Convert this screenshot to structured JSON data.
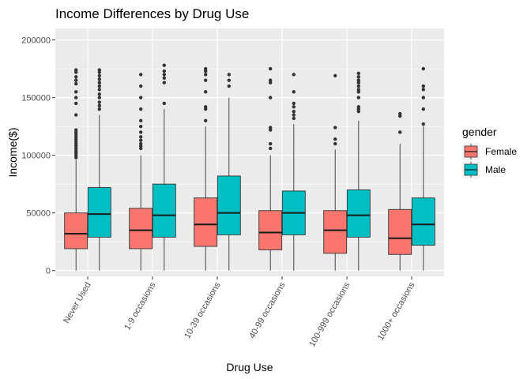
{
  "chart_data": {
    "type": "box",
    "title": "Income Differences by Drug Use",
    "xlabel": "Drug Use",
    "ylabel": "Income($)",
    "ylim": [
      -5000,
      210000
    ],
    "yticks": [
      0,
      50000,
      100000,
      150000,
      200000
    ],
    "ytick_labels": [
      "0",
      "50000",
      "100000",
      "150000",
      "200000"
    ],
    "categories": [
      "Never Used",
      "1-9 occasions",
      "10-39 occasions",
      "40-99 occasions",
      "100-999 occasions",
      "1000+ occasions"
    ],
    "legend": {
      "title": "gender",
      "position": "right"
    },
    "grid": true,
    "series": [
      {
        "name": "Female",
        "color": "#F8766D",
        "boxes": [
          {
            "min": 0,
            "q1": 19000,
            "median": 32000,
            "q3": 50000,
            "max": 96000,
            "outliers": [
              98000,
              100000,
              102000,
              104000,
              106000,
              108000,
              110000,
              112000,
              114000,
              116000,
              118000,
              120000,
              122000,
              135000,
              145000,
              150000,
              155000,
              162000,
              165000,
              168000,
              172000,
              174000
            ]
          },
          {
            "min": 0,
            "q1": 19000,
            "median": 35000,
            "q3": 54000,
            "max": 100000,
            "outliers": [
              106000,
              108000,
              110000,
              113000,
              116000,
              120000,
              125000,
              130000,
              140000,
              150000,
              160000,
              170000
            ]
          },
          {
            "min": 0,
            "q1": 21000,
            "median": 40000,
            "q3": 63000,
            "max": 125000,
            "outliers": [
              130000,
              140000,
              142000,
              155000,
              165000,
              170000,
              173000,
              175000
            ]
          },
          {
            "min": 0,
            "q1": 18000,
            "median": 33000,
            "q3": 52000,
            "max": 100000,
            "outliers": [
              106000,
              110000,
              122000,
              124000,
              150000,
              163000,
              165000,
              175000
            ]
          },
          {
            "min": 0,
            "q1": 15000,
            "median": 35000,
            "q3": 52000,
            "max": 105000,
            "outliers": [
              110000,
              114000,
              124000,
              169000
            ]
          },
          {
            "min": 0,
            "q1": 14000,
            "median": 28000,
            "q3": 53000,
            "max": 110000,
            "outliers": [
              120000,
              134000,
              136000
            ]
          }
        ]
      },
      {
        "name": "Male",
        "color": "#00BFC4",
        "boxes": [
          {
            "min": 0,
            "q1": 29000,
            "median": 49000,
            "q3": 72000,
            "max": 135000,
            "outliers": [
              140000,
              143000,
              146000,
              150000,
              153000,
              157000,
              160000,
              163000,
              166000,
              169000,
              172000,
              174000
            ]
          },
          {
            "min": 0,
            "q1": 29000,
            "median": 48000,
            "q3": 75000,
            "max": 140000,
            "outliers": [
              145000,
              163000,
              167000,
              170000,
              173000,
              178000
            ]
          },
          {
            "min": 0,
            "q1": 31000,
            "median": 50000,
            "q3": 82000,
            "max": 150000,
            "outliers": [
              160000,
              165000,
              170000
            ]
          },
          {
            "min": 0,
            "q1": 31000,
            "median": 50000,
            "q3": 69000,
            "max": 127000,
            "outliers": [
              132000,
              135000,
              138000,
              142000,
              145000,
              155000,
              170000
            ]
          },
          {
            "min": 0,
            "q1": 29000,
            "median": 48000,
            "q3": 70000,
            "max": 130000,
            "outliers": [
              138000,
              140000,
              142000,
              150000,
              155000,
              157000,
              160000,
              163000,
              165000,
              168000,
              171000
            ]
          },
          {
            "min": 0,
            "q1": 22000,
            "median": 40000,
            "q3": 63000,
            "max": 125000,
            "outliers": [
              127000,
              140000,
              150000,
              157000,
              160000,
              175000
            ]
          }
        ]
      }
    ]
  }
}
